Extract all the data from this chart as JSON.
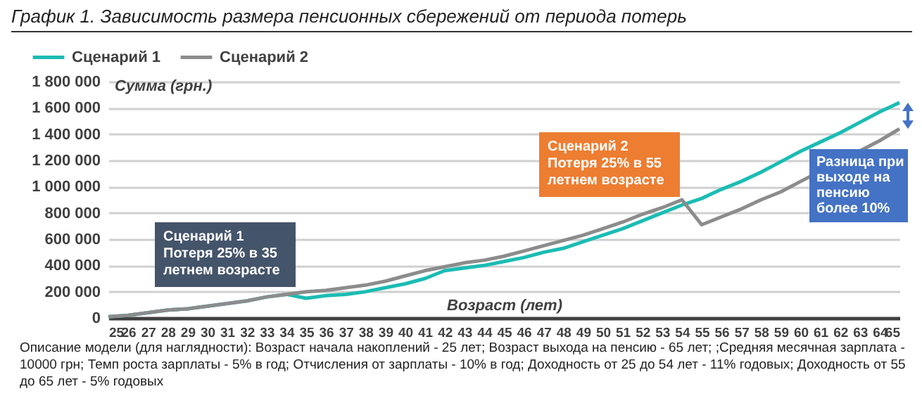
{
  "chart_data": {
    "type": "line",
    "title": "График 1. Зависимость размера пенсионных сбережений от периода потерь",
    "ylabel": "Сумма (грн.)",
    "xlabel": "Возраст (лет)",
    "x": [
      25,
      26,
      27,
      28,
      29,
      30,
      31,
      32,
      33,
      34,
      35,
      36,
      37,
      38,
      39,
      40,
      41,
      42,
      43,
      44,
      45,
      46,
      47,
      48,
      49,
      50,
      51,
      52,
      53,
      54,
      55,
      56,
      57,
      58,
      59,
      60,
      61,
      62,
      63,
      64,
      65
    ],
    "series": [
      {
        "name": "Сценарий 1",
        "color": "#1bbcb4",
        "values": [
          10000,
          20000,
          40000,
          60000,
          70000,
          90000,
          110000,
          130000,
          160000,
          180000,
          150000,
          170000,
          180000,
          200000,
          230000,
          260000,
          300000,
          360000,
          380000,
          400000,
          430000,
          460000,
          500000,
          530000,
          580000,
          630000,
          680000,
          740000,
          800000,
          860000,
          910000,
          980000,
          1040000,
          1110000,
          1190000,
          1270000,
          1340000,
          1410000,
          1490000,
          1570000,
          1640000
        ]
      },
      {
        "name": "Сценарий 2",
        "color": "#8c8c8c",
        "values": [
          10000,
          20000,
          40000,
          60000,
          70000,
          90000,
          110000,
          130000,
          160000,
          180000,
          200000,
          210000,
          230000,
          250000,
          280000,
          320000,
          360000,
          390000,
          420000,
          440000,
          470000,
          510000,
          550000,
          590000,
          630000,
          680000,
          730000,
          790000,
          840000,
          900000,
          710000,
          770000,
          830000,
          900000,
          960000,
          1040000,
          null,
          null,
          null,
          1350000,
          1440000
        ]
      }
    ],
    "xlim": [
      25,
      65
    ],
    "xticks": [
      25,
      26,
      27,
      28,
      29,
      30,
      31,
      32,
      33,
      34,
      35,
      36,
      37,
      38,
      39,
      40,
      41,
      42,
      43,
      44,
      45,
      46,
      47,
      48,
      49,
      50,
      51,
      52,
      53,
      54,
      55,
      56,
      57,
      58,
      59,
      60,
      61,
      62,
      63,
      64,
      65
    ],
    "ylim": [
      0,
      1800000
    ],
    "yticks": [
      {
        "value": 0,
        "label": "0"
      },
      {
        "value": 200000,
        "label": "200 000"
      },
      {
        "value": 400000,
        "label": "400 000"
      },
      {
        "value": 600000,
        "label": "600 000"
      },
      {
        "value": 800000,
        "label": "800 000"
      },
      {
        "value": 1000000,
        "label": "1 000 000"
      },
      {
        "value": 1200000,
        "label": "1 200 000"
      },
      {
        "value": 1400000,
        "label": "1 400 000"
      },
      {
        "value": 1600000,
        "label": "1 600 000"
      },
      {
        "value": 1800000,
        "label": "1 800 000"
      }
    ],
    "grid": "y",
    "legend": "top left",
    "marker": "none",
    "line_style": "solid",
    "annotations": [
      "Сценарий 1\nПотеря 25% в 35\nлетнем возрасте",
      "Сценарий 2\nПотеря 25% в 55\nлетнем возрасте",
      "Разница при\nвыходе на\nпенсию\nболее 10%",
      "Описание модели (для наглядности): Возраст начала накоплений - 25 лет; Возраст выхода на пенсию - 65 лет; ;Средняя месячная зарплата - 10000 грн; Темп роста зарплаты - 5% в год; Отчисления от зарплаты - 10% в год; Доходность от 25 до 54 лет - 11% годовых; Доходность от 55 до 65 лет - 5% годовых"
    ]
  }
}
